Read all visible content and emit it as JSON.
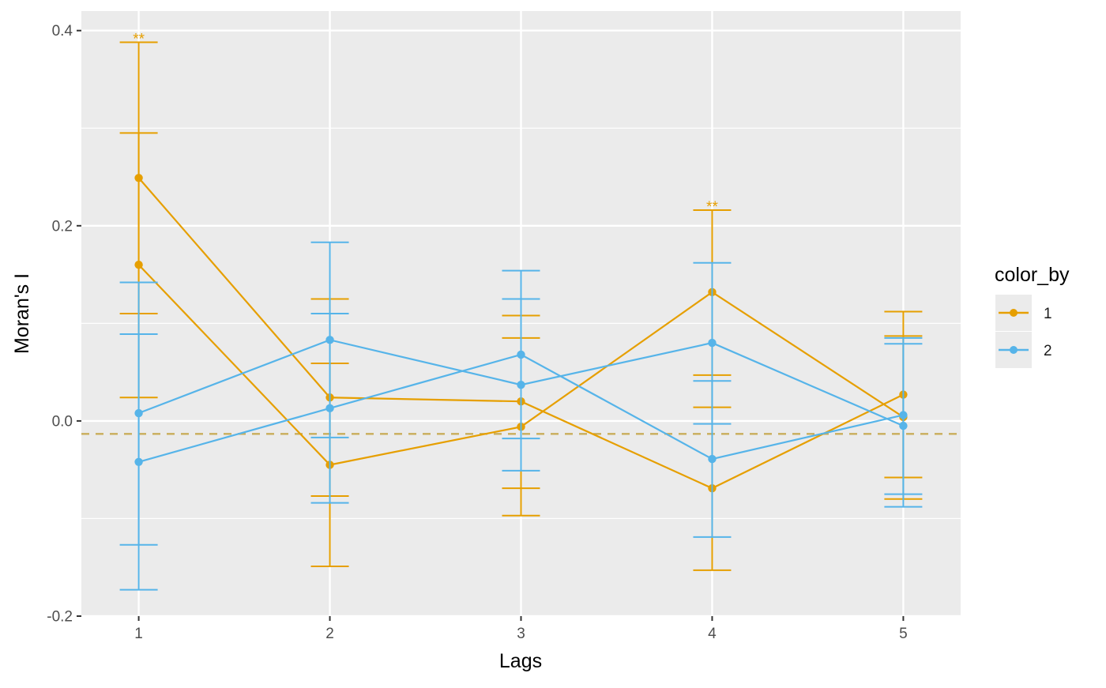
{
  "chart_data": {
    "type": "line",
    "title": "",
    "xlabel": "Lags",
    "ylabel": "Moran's I",
    "x": [
      1,
      2,
      3,
      4,
      5
    ],
    "xlim": [
      0.7,
      5.3
    ],
    "ylim": [
      -0.2,
      0.42
    ],
    "x_ticks": [
      "1",
      "2",
      "3",
      "4",
      "5"
    ],
    "y_ticks": [
      "-0.2",
      "0.0",
      "0.2",
      "0.4"
    ],
    "y_tick_values": [
      -0.2,
      0.0,
      0.2,
      0.4
    ],
    "reference_line": {
      "value": -0.0133,
      "style": "dashed",
      "color": "#c9ad5a"
    },
    "grid": true,
    "legend": {
      "title": "color_by",
      "position": "right",
      "entries": [
        {
          "label": "1",
          "color": "#E69F00"
        },
        {
          "label": "2",
          "color": "#56B4E9"
        }
      ]
    },
    "series": [
      {
        "group": "1",
        "color": "#E69F00",
        "values": [
          0.249,
          0.024,
          0.02,
          -0.069,
          0.027
        ],
        "upper": [
          0.388,
          0.125,
          0.108,
          0.216,
          0.112
        ],
        "lower": [
          0.11,
          -0.077,
          -0.069,
          -0.153,
          -0.058
        ]
      },
      {
        "group": "1",
        "color": "#E69F00",
        "values": [
          0.16,
          -0.045,
          -0.006,
          0.132,
          0.004
        ],
        "upper": [
          0.295,
          0.059,
          0.085,
          0.047,
          0.087
        ],
        "lower": [
          0.024,
          -0.149,
          -0.097,
          0.014,
          -0.08
        ]
      },
      {
        "group": "2",
        "color": "#56B4E9",
        "values": [
          0.008,
          0.083,
          0.037,
          0.08,
          -0.005
        ],
        "upper": [
          0.142,
          0.183,
          0.125,
          0.162,
          0.079
        ],
        "lower": [
          -0.127,
          -0.017,
          -0.051,
          -0.003,
          -0.088
        ]
      },
      {
        "group": "2",
        "color": "#56B4E9",
        "values": [
          -0.042,
          0.013,
          0.068,
          -0.039,
          0.006
        ],
        "upper": [
          0.089,
          0.11,
          0.154,
          0.041,
          0.085
        ],
        "lower": [
          -0.173,
          -0.084,
          -0.018,
          -0.119,
          -0.075
        ]
      }
    ],
    "annotations": [
      {
        "x": 1,
        "y": 0.388,
        "text": "**",
        "color": "#E69F00"
      },
      {
        "x": 4,
        "y": 0.216,
        "text": "**",
        "color": "#E69F00"
      }
    ]
  }
}
